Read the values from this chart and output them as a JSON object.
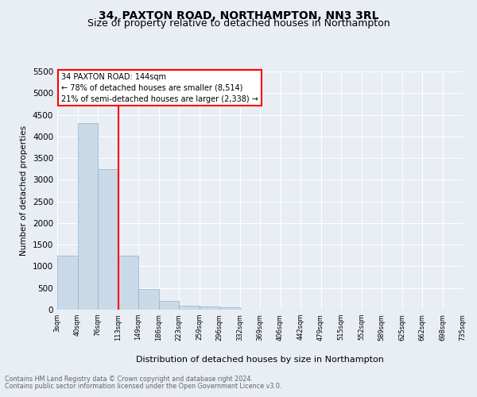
{
  "title": "34, PAXTON ROAD, NORTHAMPTON, NN3 3RL",
  "subtitle": "Size of property relative to detached houses in Northampton",
  "xlabel": "Distribution of detached houses by size in Northampton",
  "ylabel": "Number of detached properties",
  "bar_values": [
    1250,
    4300,
    3250,
    1250,
    475,
    200,
    90,
    75,
    55,
    0,
    0,
    0,
    0,
    0,
    0,
    0,
    0,
    0,
    0,
    0
  ],
  "categories": [
    "3sqm",
    "40sqm",
    "76sqm",
    "113sqm",
    "149sqm",
    "186sqm",
    "223sqm",
    "259sqm",
    "296sqm",
    "332sqm",
    "369sqm",
    "406sqm",
    "442sqm",
    "479sqm",
    "515sqm",
    "552sqm",
    "589sqm",
    "625sqm",
    "662sqm",
    "698sqm",
    "735sqm"
  ],
  "bar_color": "#cad9e8",
  "bar_edge_color": "#8ab4d0",
  "red_line_index": 3,
  "ylim": [
    0,
    5500
  ],
  "yticks": [
    0,
    500,
    1000,
    1500,
    2000,
    2500,
    3000,
    3500,
    4000,
    4500,
    5000,
    5500
  ],
  "annotation_line1": "34 PAXTON ROAD: 144sqm",
  "annotation_line2": "← 78% of detached houses are smaller (8,514)",
  "annotation_line3": "21% of semi-detached houses are larger (2,338) →",
  "footnote1": "Contains HM Land Registry data © Crown copyright and database right 2024.",
  "footnote2": "Contains public sector information licensed under the Open Government Licence v3.0.",
  "background_color": "#e8eef4",
  "axes_bg_color": "#e8eef4",
  "grid_color": "#ffffff",
  "title_fontsize": 10,
  "subtitle_fontsize": 9
}
